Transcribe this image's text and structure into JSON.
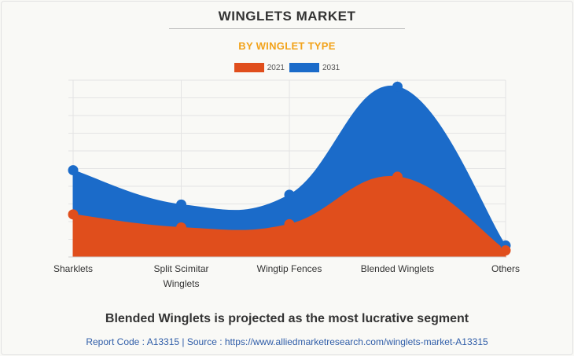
{
  "chart_data": {
    "type": "area",
    "title": "WINGLETS MARKET",
    "subtitle": "BY WINGLET TYPE",
    "categories": [
      "Sharklets",
      "Split Scimitar Winglets",
      "Wingtip Fences",
      "Blended Winglets",
      "Others"
    ],
    "category_lines": [
      [
        "Sharklets"
      ],
      [
        "Split Scimitar",
        "Winglets"
      ],
      [
        "Wingtip Fences"
      ],
      [
        "Blended Winglets"
      ],
      [
        "Others"
      ]
    ],
    "series": [
      {
        "name": "2021",
        "values": [
          26,
          18,
          20,
          49,
          4
        ],
        "color": "#e04e1c"
      },
      {
        "name": "2031",
        "values": [
          53,
          32,
          38,
          104,
          7
        ],
        "color": "#1b6bc9"
      }
    ],
    "ylim": [
      0,
      108
    ],
    "y_gridlines": 10,
    "grid": true,
    "legend_position": "top-center",
    "smooth": true
  },
  "footer": {
    "headline": "Blended Winglets is projected as the most lucrative segment",
    "source": "Report Code : A13315  |  Source : https://www.alliedmarketresearch.com/winglets-market-A13315"
  }
}
